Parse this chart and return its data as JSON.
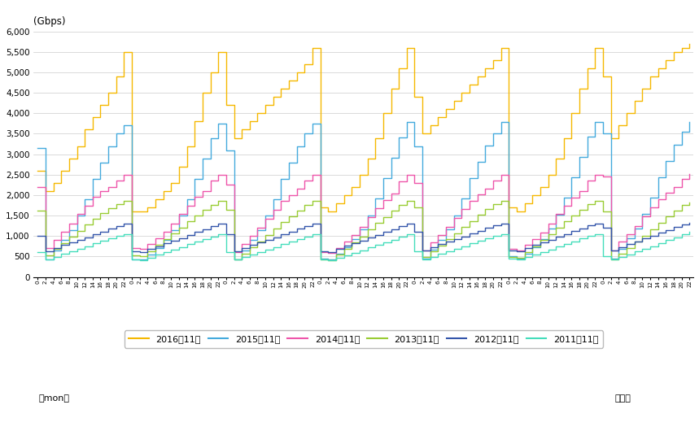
{
  "ylabel": "(Gbps)",
  "xlabel_right": "（時）",
  "xlabel_left": "（mon）",
  "ylim": [
    0,
    6000
  ],
  "yticks": [
    0,
    500,
    1000,
    1500,
    2000,
    2500,
    3000,
    3500,
    4000,
    4500,
    5000,
    5500,
    6000
  ],
  "series": [
    {
      "label": "2016年11月",
      "color": "#f5b800",
      "data": [
        2600,
        2100,
        2300,
        2600,
        2900,
        3200,
        3600,
        3900,
        4200,
        4500,
        4900,
        5500,
        1600,
        1600,
        1700,
        1900,
        2100,
        2300,
        2700,
        3200,
        3800,
        4500,
        5000,
        5500,
        4200,
        3400,
        3600,
        3800,
        4000,
        4200,
        4400,
        4600,
        4800,
        5000,
        5200,
        5600,
        1700,
        1600,
        1800,
        2000,
        2200,
        2500,
        2900,
        3400,
        4000,
        4600,
        5100,
        5600,
        4400,
        3500,
        3700,
        3900,
        4100,
        4300,
        4500,
        4700,
        4900,
        5100,
        5300,
        5600,
        1700,
        1600,
        1800,
        2000,
        2200,
        2500,
        2900,
        3400,
        4000,
        4600,
        5100,
        5600,
        4900,
        3400,
        3700,
        4000,
        4300,
        4600,
        4900,
        5100,
        5300,
        5500,
        5600,
        5700
      ]
    },
    {
      "label": "2015年11月",
      "color": "#44aadd",
      "data": [
        3150,
        430,
        650,
        900,
        1150,
        1500,
        1900,
        2400,
        2800,
        3200,
        3500,
        3700,
        430,
        420,
        550,
        700,
        900,
        1150,
        1500,
        1900,
        2400,
        2900,
        3400,
        3750,
        3100,
        430,
        650,
        900,
        1150,
        1500,
        1900,
        2400,
        2800,
        3200,
        3500,
        3750,
        450,
        430,
        560,
        720,
        920,
        1160,
        1510,
        1920,
        2420,
        2920,
        3420,
        3780,
        3200,
        440,
        660,
        910,
        1160,
        1510,
        1910,
        2410,
        2810,
        3210,
        3510,
        3780,
        500,
        440,
        570,
        730,
        930,
        1180,
        1530,
        1940,
        2440,
        2940,
        3440,
        3780,
        3500,
        450,
        680,
        940,
        1190,
        1540,
        1940,
        2440,
        2840,
        3240,
        3540,
        3780
      ]
    },
    {
      "label": "2014年11月",
      "color": "#ee55aa",
      "data": [
        2200,
        700,
        900,
        1100,
        1300,
        1550,
        1750,
        1950,
        2100,
        2200,
        2350,
        2500,
        700,
        680,
        800,
        950,
        1100,
        1300,
        1550,
        1750,
        1950,
        2100,
        2350,
        2500,
        2250,
        600,
        800,
        1000,
        1200,
        1430,
        1650,
        1850,
        2000,
        2150,
        2350,
        2500,
        600,
        580,
        710,
        860,
        1020,
        1230,
        1470,
        1680,
        1880,
        2030,
        2340,
        2500,
        2300,
        650,
        840,
        1020,
        1220,
        1450,
        1660,
        1860,
        2010,
        2160,
        2360,
        2500,
        680,
        650,
        780,
        930,
        1090,
        1300,
        1540,
        1740,
        1940,
        2090,
        2360,
        2500,
        2450,
        650,
        860,
        1050,
        1250,
        1480,
        1700,
        1900,
        2050,
        2200,
        2400,
        2520
      ]
    },
    {
      "label": "2013年11月",
      "color": "#99cc33",
      "data": [
        1620,
        530,
        680,
        830,
        980,
        1120,
        1280,
        1430,
        1560,
        1680,
        1780,
        1850,
        530,
        510,
        630,
        780,
        920,
        1060,
        1210,
        1370,
        1510,
        1640,
        1770,
        1850,
        1650,
        430,
        570,
        720,
        870,
        1020,
        1180,
        1340,
        1490,
        1630,
        1760,
        1850,
        430,
        415,
        545,
        695,
        845,
        995,
        1155,
        1315,
        1465,
        1615,
        1760,
        1850,
        1700,
        480,
        620,
        770,
        920,
        1060,
        1220,
        1370,
        1520,
        1660,
        1780,
        1850,
        490,
        470,
        600,
        750,
        900,
        1040,
        1200,
        1360,
        1510,
        1650,
        1780,
        1850,
        1600,
        430,
        560,
        710,
        860,
        1000,
        1160,
        1320,
        1480,
        1630,
        1770,
        1820
      ]
    },
    {
      "label": "2012年11月",
      "color": "#3355aa",
      "data": [
        1000,
        620,
        700,
        780,
        840,
        900,
        970,
        1040,
        1110,
        1180,
        1250,
        1300,
        620,
        600,
        680,
        755,
        820,
        885,
        955,
        1025,
        1095,
        1165,
        1240,
        1295,
        1050,
        620,
        700,
        778,
        842,
        905,
        974,
        1042,
        1110,
        1178,
        1250,
        1295,
        620,
        600,
        680,
        758,
        822,
        887,
        957,
        1027,
        1097,
        1167,
        1242,
        1298,
        1100,
        645,
        723,
        799,
        862,
        925,
        993,
        1060,
        1128,
        1196,
        1260,
        1298,
        650,
        628,
        706,
        782,
        846,
        910,
        980,
        1050,
        1120,
        1190,
        1260,
        1300,
        1200,
        650,
        730,
        810,
        874,
        938,
        1008,
        1076,
        1146,
        1216,
        1282,
        1320
      ]
    },
    {
      "label": "2011年11月",
      "color": "#44ddbb",
      "data": [
        600,
        430,
        490,
        560,
        620,
        680,
        750,
        820,
        880,
        940,
        1000,
        1050,
        430,
        415,
        475,
        542,
        600,
        660,
        730,
        800,
        862,
        922,
        985,
        1048,
        600,
        420,
        480,
        548,
        606,
        666,
        736,
        806,
        868,
        928,
        990,
        1048,
        420,
        405,
        465,
        533,
        591,
        651,
        721,
        791,
        853,
        913,
        978,
        1045,
        620,
        435,
        495,
        563,
        621,
        681,
        751,
        821,
        883,
        943,
        1005,
        1050,
        440,
        422,
        483,
        551,
        610,
        670,
        741,
        812,
        875,
        936,
        998,
        1052,
        500,
        420,
        484,
        556,
        618,
        682,
        756,
        832,
        898,
        960,
        1035,
        1100
      ]
    }
  ],
  "num_days": 7,
  "steps_per_day": 12,
  "background_color": "#ffffff",
  "grid_color": "#cccccc"
}
